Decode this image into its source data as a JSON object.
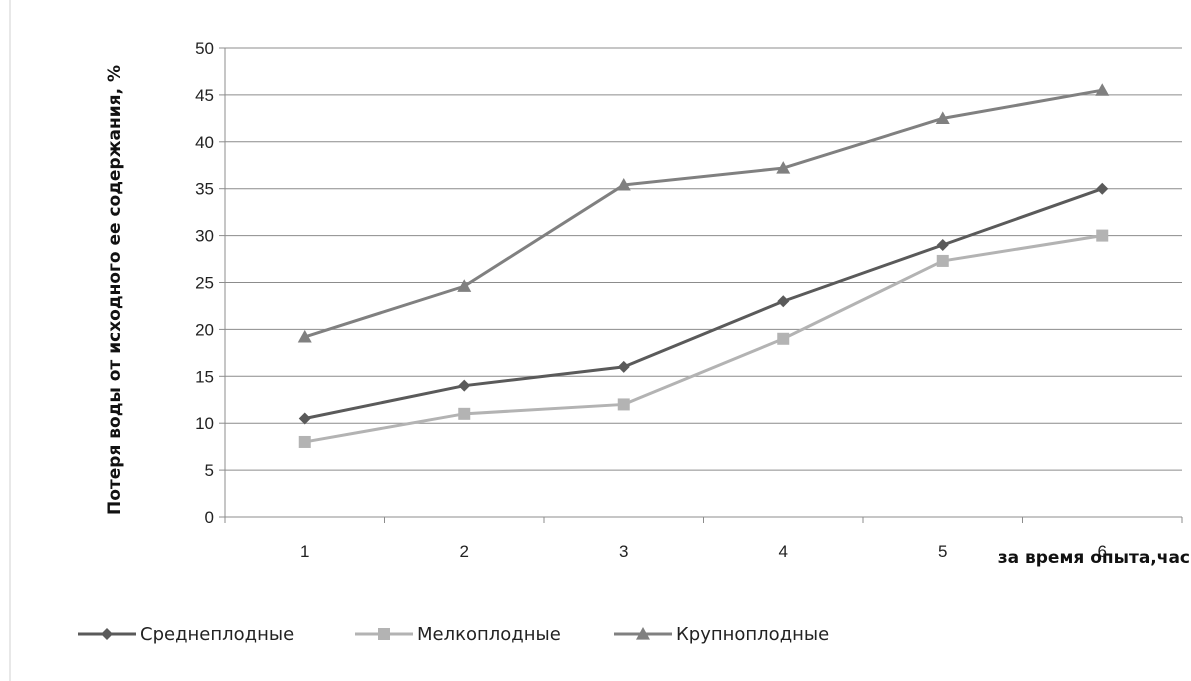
{
  "chart_data": {
    "type": "line",
    "title": "",
    "xlabel": "за время опыта,час",
    "ylabel": "Потеря воды от исходного ее содержания, %",
    "categories": [
      "1",
      "2",
      "3",
      "4",
      "5",
      "6"
    ],
    "ylim": [
      0,
      50
    ],
    "yticks": [
      0,
      5,
      10,
      15,
      20,
      25,
      30,
      35,
      40,
      45,
      50
    ],
    "grid": "horizontal",
    "legend_position": "bottom",
    "series": [
      {
        "name": "Среднеплодные",
        "values": [
          10.5,
          14,
          16,
          23,
          29,
          35
        ],
        "color": "#5a5a5a",
        "marker": "diamond"
      },
      {
        "name": "Мелкоплодные",
        "values": [
          8,
          11,
          12,
          19,
          27.3,
          30
        ],
        "color": "#b3b3b3",
        "marker": "square"
      },
      {
        "name": "Крупноплодные",
        "values": [
          19.2,
          24.6,
          35.4,
          37.2,
          42.5,
          45.5
        ],
        "color": "#808080",
        "marker": "triangle"
      }
    ]
  }
}
